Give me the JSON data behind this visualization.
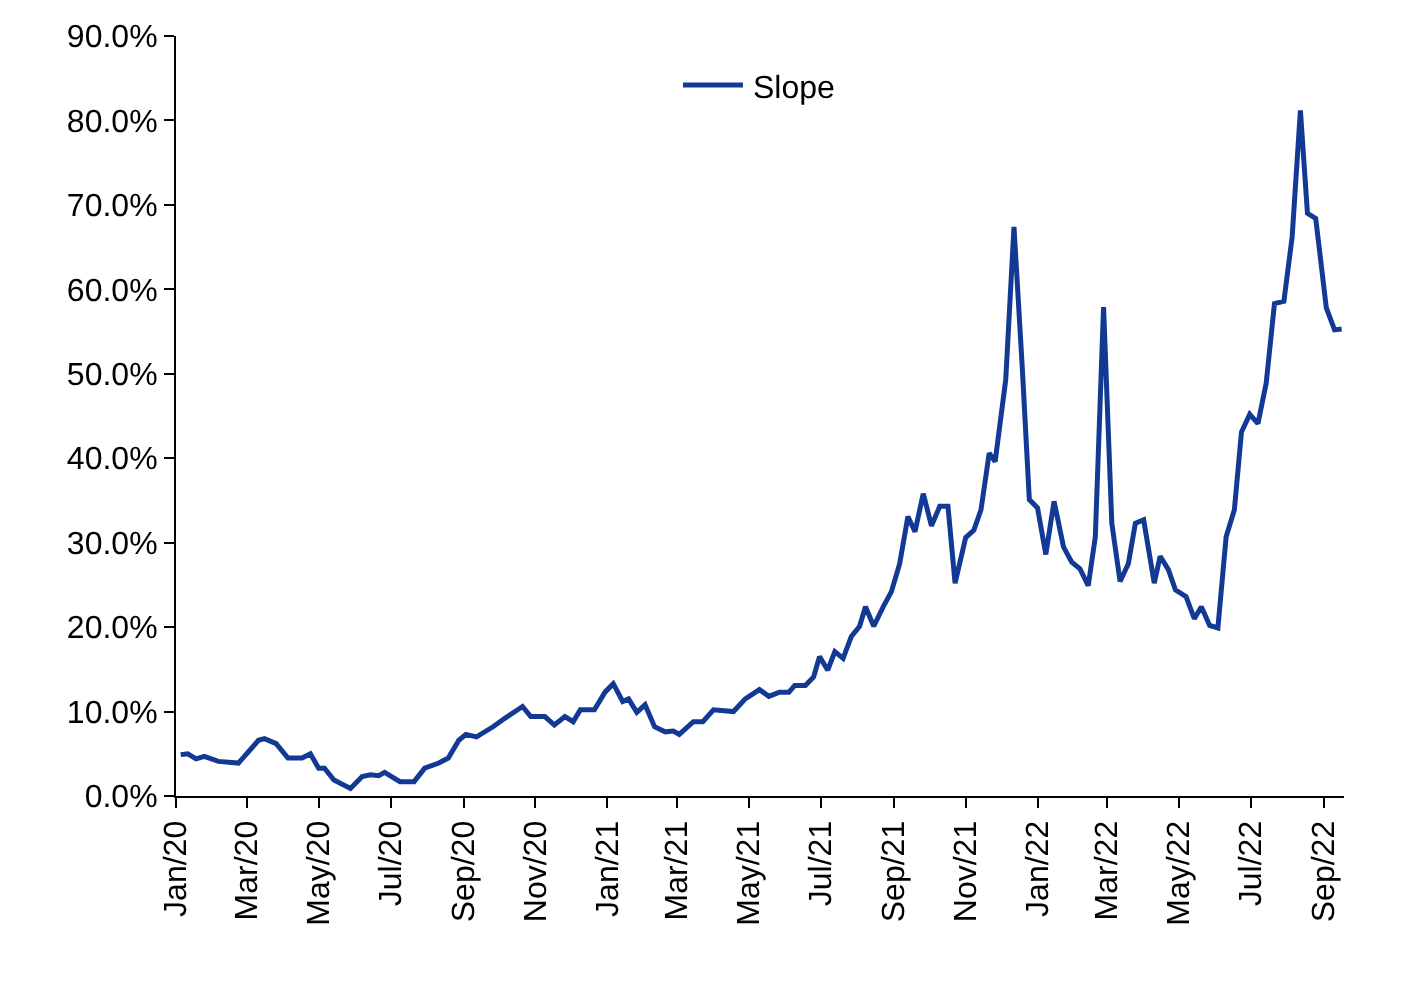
{
  "chart_data": {
    "type": "line",
    "legend": "top",
    "grid": false,
    "marker": "none",
    "line_style": "solid",
    "xlim": [
      "2020-01-01",
      "2022-09-18"
    ],
    "xticks": [
      {
        "value": "2020-01-01",
        "label": "Jan/20"
      },
      {
        "value": "2020-03-01",
        "label": "Mar/20"
      },
      {
        "value": "2020-05-01",
        "label": "May/20"
      },
      {
        "value": "2020-07-01",
        "label": "Jul/20"
      },
      {
        "value": "2020-09-01",
        "label": "Sep/20"
      },
      {
        "value": "2020-11-01",
        "label": "Nov/20"
      },
      {
        "value": "2021-01-01",
        "label": "Jan/21"
      },
      {
        "value": "2021-03-01",
        "label": "Mar/21"
      },
      {
        "value": "2021-05-01",
        "label": "May/21"
      },
      {
        "value": "2021-07-01",
        "label": "Jul/21"
      },
      {
        "value": "2021-09-01",
        "label": "Sep/21"
      },
      {
        "value": "2021-11-01",
        "label": "Nov/21"
      },
      {
        "value": "2022-01-01",
        "label": "Jan/22"
      },
      {
        "value": "2022-03-01",
        "label": "Mar/22"
      },
      {
        "value": "2022-05-01",
        "label": "May/22"
      },
      {
        "value": "2022-07-01",
        "label": "Jul/22"
      },
      {
        "value": "2022-09-01",
        "label": "Sep/22"
      }
    ],
    "ylim": [
      0,
      90
    ],
    "yticks": [
      {
        "value": 0,
        "label": "0.0%"
      },
      {
        "value": 10,
        "label": "10.0%"
      },
      {
        "value": 20,
        "label": "20.0%"
      },
      {
        "value": 30,
        "label": "30.0%"
      },
      {
        "value": 40,
        "label": "40.0%"
      },
      {
        "value": 50,
        "label": "50.0%"
      },
      {
        "value": 60,
        "label": "60.0%"
      },
      {
        "value": 70,
        "label": "70.0%"
      },
      {
        "value": 80,
        "label": "80.0%"
      },
      {
        "value": 90,
        "label": "90.0%"
      }
    ],
    "x": [
      "2020-01-05",
      "2020-01-11",
      "2020-01-18",
      "2020-01-25",
      "2020-02-06",
      "2020-02-23",
      "2020-02-28",
      "2020-03-11",
      "2020-03-16",
      "2020-03-26",
      "2020-04-05",
      "2020-04-17",
      "2020-04-24",
      "2020-05-01",
      "2020-05-06",
      "2020-05-14",
      "2020-05-28",
      "2020-06-07",
      "2020-06-14",
      "2020-06-21",
      "2020-06-26",
      "2020-07-09",
      "2020-07-21",
      "2020-07-30",
      "2020-08-11",
      "2020-08-19",
      "2020-08-28",
      "2020-09-03",
      "2020-09-12",
      "2020-09-26",
      "2020-10-06",
      "2020-10-21",
      "2020-10-28",
      "2020-11-09",
      "2020-11-17",
      "2020-11-26",
      "2020-12-03",
      "2020-12-09",
      "2020-12-21",
      "2020-12-30",
      "2021-01-06",
      "2021-01-14",
      "2021-01-19",
      "2021-01-26",
      "2021-02-02",
      "2021-02-10",
      "2021-02-19",
      "2021-02-26",
      "2021-03-03",
      "2021-03-15",
      "2021-03-23",
      "2021-04-01",
      "2021-04-18",
      "2021-04-28",
      "2021-05-10",
      "2021-05-18",
      "2021-05-27",
      "2021-06-04",
      "2021-06-09",
      "2021-06-18",
      "2021-06-25",
      "2021-06-30",
      "2021-07-07",
      "2021-07-13",
      "2021-07-20",
      "2021-07-27",
      "2021-08-03",
      "2021-08-08",
      "2021-08-15",
      "2021-08-23",
      "2021-08-30",
      "2021-09-06",
      "2021-09-13",
      "2021-09-19",
      "2021-09-26",
      "2021-10-03",
      "2021-10-10",
      "2021-10-17",
      "2021-10-23",
      "2021-11-01",
      "2021-11-08",
      "2021-11-14",
      "2021-11-21",
      "2021-11-26",
      "2021-12-05",
      "2021-12-12",
      "2021-12-19",
      "2021-12-25",
      "2022-01-01",
      "2022-01-08",
      "2022-01-15",
      "2022-01-23",
      "2022-01-30",
      "2022-02-06",
      "2022-02-13",
      "2022-02-19",
      "2022-02-26",
      "2022-03-05",
      "2022-03-12",
      "2022-03-19",
      "2022-03-25",
      "2022-04-01",
      "2022-04-10",
      "2022-04-15",
      "2022-04-22",
      "2022-04-28",
      "2022-05-07",
      "2022-05-14",
      "2022-05-20",
      "2022-05-27",
      "2022-06-03",
      "2022-06-10",
      "2022-06-17",
      "2022-06-23",
      "2022-06-30",
      "2022-07-07",
      "2022-07-14",
      "2022-07-21",
      "2022-07-29",
      "2022-08-05",
      "2022-08-12",
      "2022-08-18",
      "2022-08-25",
      "2022-09-03",
      "2022-09-10",
      "2022-09-16"
    ],
    "series": [
      {
        "name": "Slope",
        "color": "#123a94",
        "values": [
          4.9,
          5.0,
          4.4,
          4.7,
          4.1,
          3.9,
          4.7,
          6.6,
          6.8,
          6.2,
          4.5,
          4.5,
          5.0,
          3.3,
          3.3,
          1.9,
          0.9,
          2.3,
          2.5,
          2.4,
          2.8,
          1.7,
          1.7,
          3.3,
          3.9,
          4.5,
          6.6,
          7.3,
          7.0,
          8.2,
          9.2,
          10.6,
          9.4,
          9.4,
          8.4,
          9.4,
          8.8,
          10.2,
          10.2,
          12.3,
          13.3,
          11.2,
          11.5,
          9.9,
          10.8,
          8.2,
          7.6,
          7.7,
          7.3,
          8.8,
          8.8,
          10.2,
          10.0,
          11.5,
          12.6,
          11.8,
          12.3,
          12.3,
          13.1,
          13.1,
          14.1,
          16.5,
          14.9,
          17.1,
          16.3,
          18.9,
          20.1,
          22.4,
          20.1,
          22.4,
          24.2,
          27.5,
          33.1,
          31.3,
          35.8,
          32.0,
          34.3,
          34.3,
          25.2,
          30.6,
          31.5,
          33.9,
          40.6,
          39.6,
          49.3,
          67.4,
          50.8,
          35.1,
          34.1,
          28.6,
          34.9,
          29.5,
          27.7,
          26.9,
          24.9,
          30.7,
          57.9,
          32.3,
          25.4,
          27.5,
          32.3,
          32.7,
          25.2,
          28.4,
          26.8,
          24.4,
          23.6,
          21.0,
          22.4,
          20.2,
          19.9,
          30.7,
          33.9,
          43.1,
          45.2,
          44.1,
          48.9,
          58.3,
          58.6,
          66.2,
          81.2,
          69.0,
          68.4,
          57.8,
          55.2,
          55.3
        ]
      }
    ]
  }
}
